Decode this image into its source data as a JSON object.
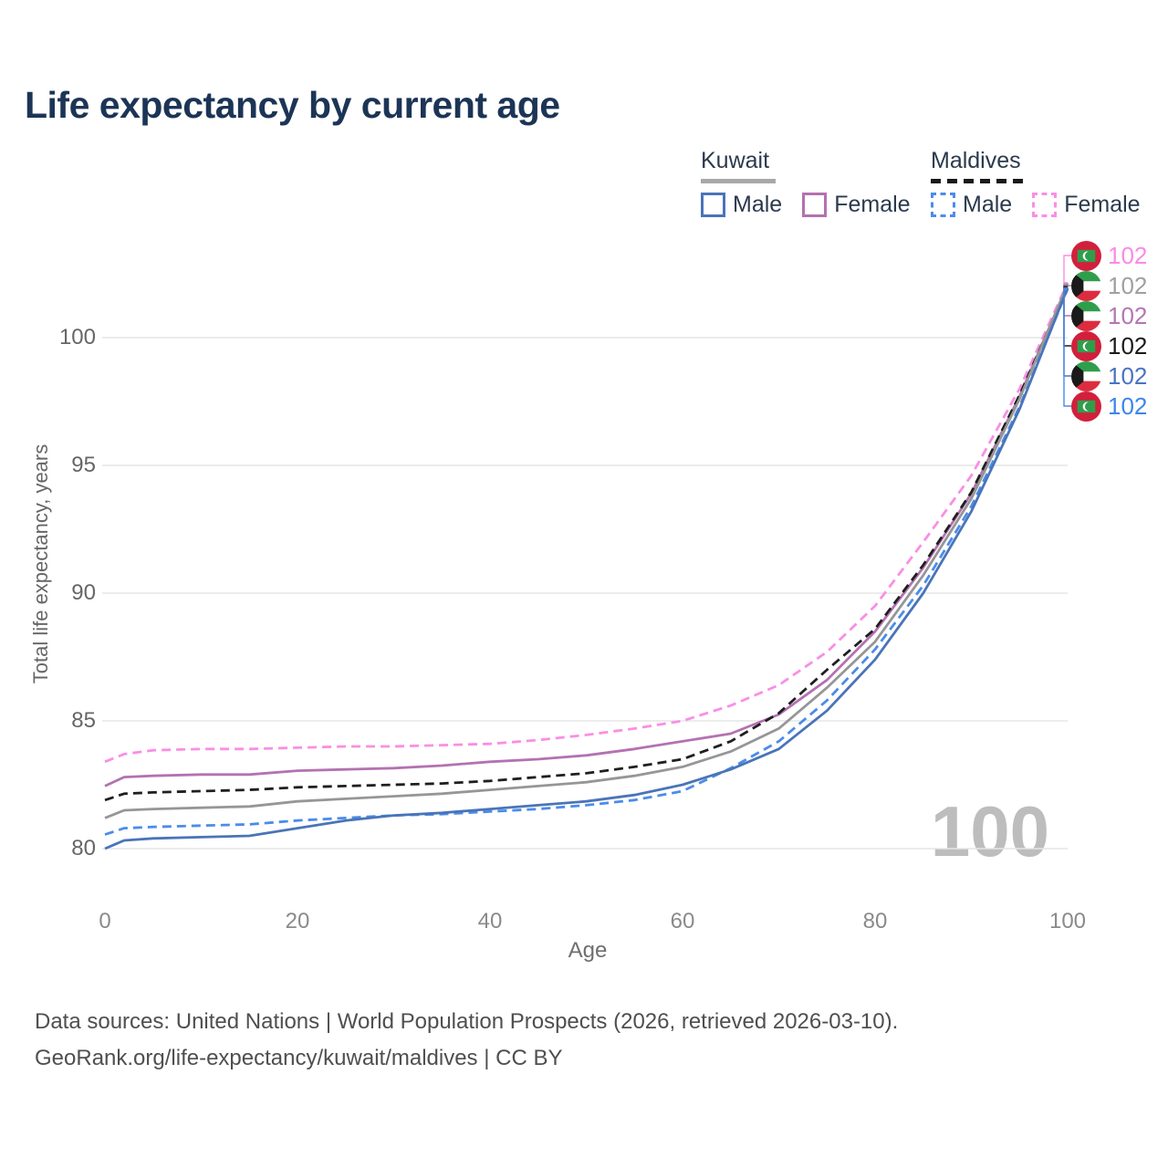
{
  "title": "Life expectancy by current age",
  "watermark": "100",
  "axes": {
    "x_label": "Age",
    "y_label": "Total life expectancy, years"
  },
  "legend": {
    "groups": [
      {
        "country": "Kuwait",
        "line_style": "solid",
        "underline_color": "#a8a8a8",
        "items": [
          {
            "label": "Male",
            "color": "#4a74b8",
            "dash": "solid"
          },
          {
            "label": "Female",
            "color": "#b471b1",
            "dash": "solid"
          }
        ]
      },
      {
        "country": "Maldives",
        "line_style": "dashed",
        "underline_color": "#1a1a1a",
        "items": [
          {
            "label": "Male",
            "color": "#4b8cea",
            "dash": "dashed"
          },
          {
            "label": "Female",
            "color": "#f98fe4",
            "dash": "dashed"
          }
        ]
      }
    ]
  },
  "footer": {
    "line1": "Data sources: United Nations | World Population Prospects (2026, retrieved 2026-03-10).",
    "line2": "GeoRank.org/life-expectancy/kuwait/maldives | CC BY"
  },
  "chart_data": {
    "type": "line",
    "title": "Life expectancy by current age",
    "xlabel": "Age",
    "ylabel": "Total life expectancy, years",
    "x_ticks": [
      0,
      20,
      40,
      60,
      80,
      100
    ],
    "y_ticks": [
      80,
      85,
      90,
      95,
      100
    ],
    "xlim": [
      0,
      100
    ],
    "ylim": [
      78.5,
      103
    ],
    "grid": "horizontal",
    "legend_position": "top-right",
    "x": [
      0,
      2,
      5,
      10,
      15,
      20,
      25,
      30,
      35,
      40,
      45,
      50,
      55,
      60,
      65,
      70,
      75,
      80,
      85,
      90,
      95,
      100
    ],
    "series": [
      {
        "key": "maldives_female",
        "name": "Maldives Female",
        "country": "Maldives",
        "sex": "Female",
        "color": "#f98fe4",
        "dash": "dashed",
        "values": [
          83.4,
          83.7,
          83.85,
          83.9,
          83.9,
          83.95,
          84.0,
          84.0,
          84.05,
          84.1,
          84.25,
          84.45,
          84.7,
          85.0,
          85.6,
          86.4,
          87.7,
          89.5,
          92.0,
          94.6,
          98.0,
          102.15
        ]
      },
      {
        "key": "kuwait_female",
        "name": "Kuwait Female",
        "country": "Kuwait",
        "sex": "Female",
        "color": "#b471b1",
        "dash": "solid",
        "values": [
          82.45,
          82.8,
          82.85,
          82.9,
          82.9,
          83.05,
          83.1,
          83.15,
          83.25,
          83.4,
          83.5,
          83.65,
          83.9,
          84.2,
          84.5,
          85.25,
          86.6,
          88.5,
          91.0,
          93.9,
          97.7,
          102.05
        ]
      },
      {
        "key": "maldives_total",
        "name": "Maldives Total",
        "country": "Maldives",
        "sex": "Both",
        "color": "#1f1f1f",
        "dash": "dashed",
        "values": [
          81.9,
          82.15,
          82.2,
          82.25,
          82.3,
          82.4,
          82.45,
          82.5,
          82.55,
          82.65,
          82.8,
          82.95,
          83.2,
          83.5,
          84.2,
          85.3,
          87.0,
          88.6,
          91.1,
          93.95,
          97.75,
          102.0
        ]
      },
      {
        "key": "kuwait_total",
        "name": "Kuwait Total",
        "country": "Kuwait",
        "sex": "Both",
        "color": "#969696",
        "dash": "solid",
        "values": [
          81.2,
          81.5,
          81.55,
          81.6,
          81.65,
          81.85,
          81.95,
          82.05,
          82.15,
          82.3,
          82.45,
          82.6,
          82.85,
          83.2,
          83.8,
          84.7,
          86.3,
          88.1,
          90.7,
          93.7,
          97.6,
          102.1
        ]
      },
      {
        "key": "maldives_male",
        "name": "Maldives Male",
        "country": "Maldives",
        "sex": "Male",
        "color": "#4b8cea",
        "dash": "dashed",
        "values": [
          80.55,
          80.8,
          80.85,
          80.9,
          80.95,
          81.1,
          81.2,
          81.3,
          81.35,
          81.45,
          81.55,
          81.7,
          81.9,
          82.25,
          83.15,
          84.2,
          85.8,
          87.8,
          90.3,
          93.4,
          97.3,
          101.9
        ]
      },
      {
        "key": "kuwait_male",
        "name": "Kuwait Male",
        "country": "Kuwait",
        "sex": "Male",
        "color": "#4a74b8",
        "dash": "solid",
        "values": [
          80.0,
          80.32,
          80.4,
          80.45,
          80.5,
          80.8,
          81.1,
          81.3,
          81.4,
          81.55,
          81.7,
          81.85,
          82.1,
          82.5,
          83.1,
          83.9,
          85.4,
          87.4,
          90.0,
          93.2,
          97.2,
          101.95
        ]
      }
    ],
    "end_rows": [
      {
        "series_key": "maldives_female",
        "flag": "maldives",
        "label": "102",
        "label_color": "#fb8ae4"
      },
      {
        "series_key": "kuwait_total",
        "flag": "kuwait",
        "label": "102",
        "label_color": "#a0a0a0"
      },
      {
        "series_key": "kuwait_female",
        "flag": "kuwait",
        "label": "102",
        "label_color": "#b277b2"
      },
      {
        "series_key": "maldives_total",
        "flag": "maldives",
        "label": "102",
        "label_color": "#1a1a1a"
      },
      {
        "series_key": "kuwait_male",
        "flag": "kuwait",
        "label": "102",
        "label_color": "#4a74c0"
      },
      {
        "series_key": "maldives_male",
        "flag": "maldives",
        "label": "102",
        "label_color": "#3d85ea"
      }
    ],
    "watermark_age": "100"
  }
}
